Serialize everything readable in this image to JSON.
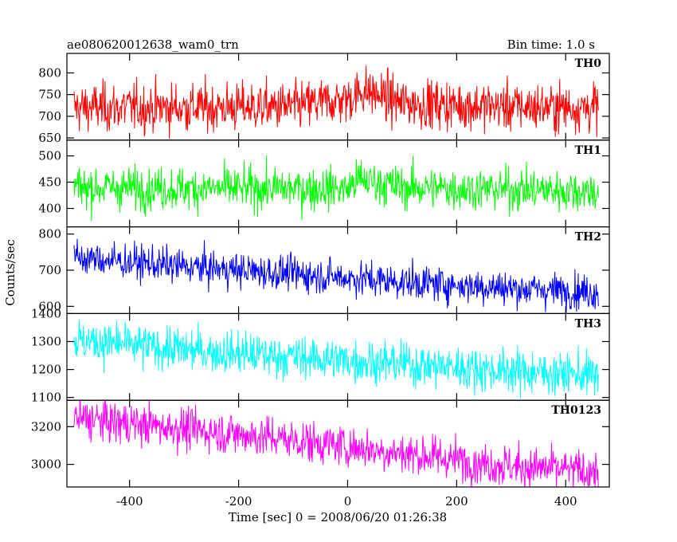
{
  "chart_data": {
    "type": "line",
    "title": "ae080620012638_wam0_trn",
    "subtitle": "Bin time: 1.0 s",
    "xlabel": "Time [sec] 0 = 2008/06/20 01:26:38",
    "ylabel": "Counts/sec",
    "xlim": [
      -515,
      480
    ],
    "x_ticks": [
      -400,
      -200,
      0,
      200,
      400
    ],
    "data_x_range": [
      -502,
      460
    ],
    "bin_time_s": 1.0,
    "panels": [
      {
        "name": "TH0",
        "color": "#ff0000",
        "ylim": [
          645,
          845
        ],
        "y_ticks": [
          650,
          700,
          750,
          800
        ],
        "trend": {
          "x": [
            -502,
            -300,
            -100,
            0,
            30,
            100,
            300,
            460
          ],
          "y": [
            720,
            720,
            722,
            740,
            760,
            730,
            722,
            720
          ]
        },
        "noise_sd": 28
      },
      {
        "name": "TH1",
        "color": "#00ff00",
        "ylim": [
          365,
          530
        ],
        "y_ticks": [
          400,
          450,
          500
        ],
        "trend": {
          "x": [
            -502,
            -300,
            0,
            20,
            100,
            460
          ],
          "y": [
            440,
            438,
            438,
            455,
            440,
            433
          ]
        },
        "noise_sd": 20
      },
      {
        "name": "TH2",
        "color": "#0000ff",
        "ylim": [
          580,
          820
        ],
        "y_ticks": [
          600,
          700,
          800
        ],
        "trend": {
          "x": [
            -502,
            -300,
            -100,
            100,
            300,
            460
          ],
          "y": [
            735,
            710,
            690,
            668,
            650,
            640
          ]
        },
        "noise_sd": 24
      },
      {
        "name": "TH3",
        "color": "#00ffff",
        "ylim": [
          1090,
          1400
        ],
        "y_ticks": [
          1100,
          1200,
          1300,
          1400
        ],
        "trend": {
          "x": [
            -502,
            -300,
            -100,
            100,
            300,
            460
          ],
          "y": [
            1305,
            1270,
            1245,
            1220,
            1195,
            1180
          ]
        },
        "noise_sd": 38
      },
      {
        "name": "TH0123",
        "color": "#ff00ff",
        "ylim": [
          2880,
          3340
        ],
        "y_ticks": [
          3000,
          3200
        ],
        "trend": {
          "x": [
            -502,
            -300,
            -100,
            100,
            300,
            460
          ],
          "y": [
            3245,
            3190,
            3130,
            3060,
            2990,
            2960
          ]
        },
        "noise_sd": 55
      }
    ]
  }
}
